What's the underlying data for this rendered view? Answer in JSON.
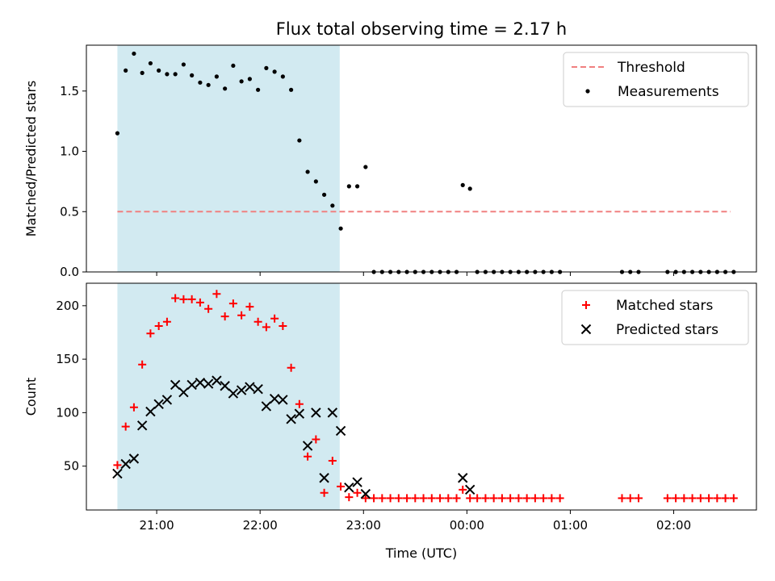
{
  "chart_data": {
    "title": "Flux total observing time = 2.17 h",
    "xlabel": "Time (UTC)",
    "x_unit": "hours after 21:00 UTC",
    "x_ticks": [
      {
        "v": 0,
        "label": "21:00"
      },
      {
        "v": 1,
        "label": "22:00"
      },
      {
        "v": 2,
        "label": "23:00"
      },
      {
        "v": 3,
        "label": "00:00"
      },
      {
        "v": 4,
        "label": "01:00"
      },
      {
        "v": 5,
        "label": "02:00"
      }
    ],
    "xlim": [
      -0.68,
      5.8
    ],
    "shaded_span": [
      -0.38,
      1.77
    ],
    "shaded_color": "#add8e6",
    "panels": [
      {
        "type": "scatter",
        "ylabel": "Matched/Predicted stars",
        "ylim": [
          0,
          1.88
        ],
        "y_ticks": [
          {
            "v": 0,
            "label": "0.0"
          },
          {
            "v": 0.5,
            "label": "0.5"
          },
          {
            "v": 1.0,
            "label": "1.0"
          },
          {
            "v": 1.5,
            "label": "1.5"
          }
        ],
        "legend": [
          {
            "label": "Threshold",
            "kind": "dash",
            "color": "#f08080"
          },
          {
            "label": "Measurements",
            "kind": "dot",
            "color": "#000000"
          }
        ],
        "threshold": {
          "value": 0.5,
          "x_start": -0.38,
          "x_end": 5.55,
          "color": "#f08080"
        },
        "measurements": {
          "x": [
            -0.38,
            -0.3,
            -0.22,
            -0.14,
            -0.06,
            0.02,
            0.1,
            0.18,
            0.26,
            0.34,
            0.42,
            0.5,
            0.58,
            0.66,
            0.74,
            0.82,
            0.9,
            0.98,
            1.06,
            1.14,
            1.22,
            1.3,
            1.38,
            1.46,
            1.54,
            1.62,
            1.7,
            1.78,
            1.86,
            1.94,
            2.02,
            2.1,
            2.18,
            2.26,
            2.34,
            2.42,
            2.5,
            2.58,
            2.66,
            2.74,
            2.82,
            2.9,
            2.96,
            3.03,
            3.1,
            3.18,
            3.26,
            3.34,
            3.42,
            3.5,
            3.58,
            3.66,
            3.74,
            3.82,
            3.9,
            4.5,
            4.58,
            4.66,
            4.94,
            5.02,
            5.1,
            5.18,
            5.26,
            5.34,
            5.42,
            5.5,
            5.58
          ],
          "y": [
            1.15,
            1.67,
            1.81,
            1.65,
            1.73,
            1.67,
            1.64,
            1.64,
            1.72,
            1.63,
            1.57,
            1.55,
            1.62,
            1.52,
            1.71,
            1.58,
            1.6,
            1.51,
            1.69,
            1.66,
            1.62,
            1.51,
            1.09,
            0.83,
            0.75,
            0.64,
            0.55,
            0.36,
            0.71,
            0.71,
            0.87,
            0,
            0,
            0,
            0,
            0,
            0,
            0,
            0,
            0,
            0,
            0,
            0.72,
            0.69,
            0,
            0,
            0,
            0,
            0,
            0,
            0,
            0,
            0,
            0,
            0,
            0,
            0,
            0,
            0,
            0,
            0,
            0,
            0,
            0,
            0,
            0,
            0
          ]
        }
      },
      {
        "type": "scatter",
        "ylabel": "Count",
        "ylim": [
          9,
          221
        ],
        "y_ticks": [
          {
            "v": 50,
            "label": "50"
          },
          {
            "v": 100,
            "label": "100"
          },
          {
            "v": 150,
            "label": "150"
          },
          {
            "v": 200,
            "label": "200"
          }
        ],
        "legend": [
          {
            "label": "Matched stars",
            "kind": "plus",
            "color": "#ff0000"
          },
          {
            "label": "Predicted stars",
            "kind": "cross",
            "color": "#000000"
          }
        ],
        "matched": {
          "x": [
            -0.38,
            -0.3,
            -0.22,
            -0.14,
            -0.06,
            0.02,
            0.1,
            0.18,
            0.26,
            0.34,
            0.42,
            0.5,
            0.58,
            0.66,
            0.74,
            0.82,
            0.9,
            0.98,
            1.06,
            1.14,
            1.22,
            1.3,
            1.38,
            1.46,
            1.54,
            1.62,
            1.7,
            1.78,
            1.86,
            1.94,
            2.02,
            2.1,
            2.18,
            2.26,
            2.34,
            2.42,
            2.5,
            2.58,
            2.66,
            2.74,
            2.82,
            2.9,
            2.96,
            3.03,
            3.1,
            3.18,
            3.26,
            3.34,
            3.42,
            3.5,
            3.58,
            3.66,
            3.74,
            3.82,
            3.9,
            4.5,
            4.58,
            4.66,
            4.94,
            5.02,
            5.1,
            5.18,
            5.26,
            5.34,
            5.42,
            5.5,
            5.58
          ],
          "y": [
            51,
            87,
            105,
            145,
            174,
            181,
            185,
            207,
            206,
            206,
            203,
            197,
            211,
            190,
            202,
            191,
            199,
            185,
            180,
            188,
            181,
            142,
            108,
            59,
            75,
            25,
            55,
            31,
            21,
            25,
            20,
            20,
            20,
            20,
            20,
            20,
            20,
            20,
            20,
            20,
            20,
            20,
            28,
            20,
            20,
            20,
            20,
            20,
            20,
            20,
            20,
            20,
            20,
            20,
            20,
            20,
            20,
            20,
            20,
            20,
            20,
            20,
            20,
            20,
            20,
            20,
            20
          ]
        },
        "predicted": {
          "x": [
            -0.38,
            -0.3,
            -0.22,
            -0.14,
            -0.06,
            0.02,
            0.1,
            0.18,
            0.26,
            0.34,
            0.42,
            0.5,
            0.58,
            0.66,
            0.74,
            0.82,
            0.9,
            0.98,
            1.06,
            1.14,
            1.22,
            1.3,
            1.38,
            1.46,
            1.54,
            1.62,
            1.7,
            1.78,
            1.86,
            1.94,
            2.02,
            2.96,
            3.03
          ],
          "y": [
            43,
            52,
            57,
            88,
            101,
            108,
            112,
            126,
            119,
            126,
            128,
            127,
            130,
            125,
            118,
            121,
            124,
            122,
            106,
            113,
            112,
            94,
            99,
            69,
            100,
            39,
            100,
            83,
            30,
            35,
            24,
            39,
            28
          ]
        }
      }
    ]
  }
}
